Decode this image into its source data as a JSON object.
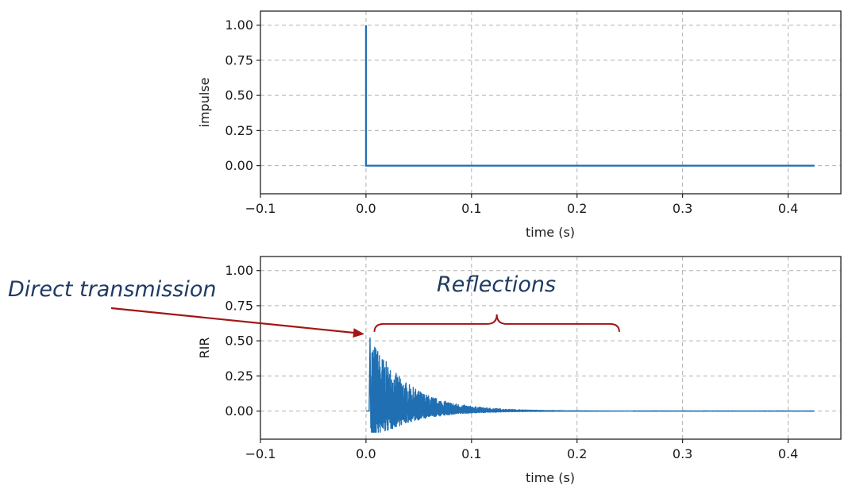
{
  "colors": {
    "series": "#1f6fb2",
    "annotation_arrow": "#a31515",
    "annotation_text": "#1f3b63"
  },
  "chart_data": [
    {
      "type": "line",
      "title": "",
      "xlabel": "time (s)",
      "ylabel": "impulse",
      "xlim": [
        -0.1,
        0.45
      ],
      "ylim": [
        -0.2,
        1.1
      ],
      "xticks": [
        -0.1,
        0.0,
        0.1,
        0.2,
        0.3,
        0.4
      ],
      "xtick_labels": [
        "−0.1",
        "0.0",
        "0.1",
        "0.2",
        "0.3",
        "0.4"
      ],
      "yticks": [
        0.0,
        0.25,
        0.5,
        0.75,
        1.0
      ],
      "ytick_labels": [
        "0.00",
        "0.25",
        "0.50",
        "0.75",
        "1.00"
      ],
      "grid": true,
      "series": [
        {
          "name": "impulse",
          "x": [
            0.0,
            0.0,
            0.0,
            0.425
          ],
          "y": [
            0.0,
            1.0,
            0.0,
            0.0
          ]
        }
      ]
    },
    {
      "type": "line",
      "title": "",
      "xlabel": "time (s)",
      "ylabel": "RIR",
      "xlim": [
        -0.1,
        0.45
      ],
      "ylim": [
        -0.2,
        1.1
      ],
      "xticks": [
        -0.1,
        0.0,
        0.1,
        0.2,
        0.3,
        0.4
      ],
      "xtick_labels": [
        "−0.1",
        "0.0",
        "0.1",
        "0.2",
        "0.3",
        "0.4"
      ],
      "yticks": [
        0.0,
        0.25,
        0.5,
        0.75,
        1.0
      ],
      "ytick_labels": [
        "0.00",
        "0.25",
        "0.50",
        "0.75",
        "1.00"
      ],
      "grid": true,
      "series": [
        {
          "name": "RIR",
          "duration": 0.425,
          "onset": 0.003,
          "direct_peak": 0.52,
          "max_peak": 0.56,
          "min_trough": -0.15,
          "decay_end": 0.25
        }
      ],
      "annotations": [
        {
          "text": "Direct transmission",
          "target_x": 0.0,
          "target_y": 0.52
        },
        {
          "text": "Reflections",
          "span_x": [
            0.008,
            0.24
          ],
          "y": 0.62
        }
      ]
    }
  ]
}
